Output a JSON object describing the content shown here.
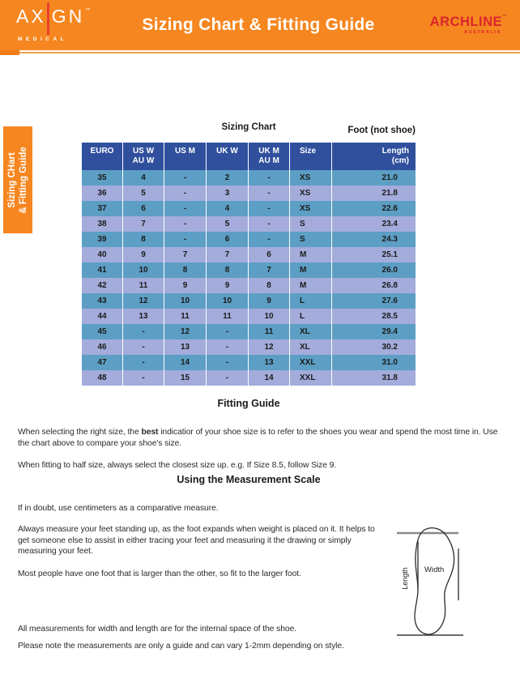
{
  "banner": {
    "axign_prefix": "AX",
    "axign_suffix": "GN",
    "axign_tm": "™",
    "axign_sub": "MEDICAL",
    "title": "Sizing Chart & Fitting Guide",
    "archline": "ARCHLINE",
    "archline_tm": "™",
    "archline_sub": "AUSTRALIA"
  },
  "side_tab": {
    "line1": "Sizing CHart",
    "line2": "& Fitting Guide"
  },
  "chart_data": {
    "type": "table",
    "title": "Sizing Chart",
    "note": "Foot (not shoe)",
    "columns": [
      [
        "EURO",
        ""
      ],
      [
        "US W",
        "AU W"
      ],
      [
        "US M",
        ""
      ],
      [
        "UK W",
        ""
      ],
      [
        "UK M",
        "AU M"
      ],
      [
        "Size",
        ""
      ],
      [
        "Length",
        "(cm)"
      ]
    ],
    "rows": [
      [
        "35",
        "4",
        "-",
        "2",
        "-",
        "XS",
        "21.0"
      ],
      [
        "36",
        "5",
        "-",
        "3",
        "-",
        "XS",
        "21.8"
      ],
      [
        "37",
        "6",
        "-",
        "4",
        "-",
        "XS",
        "22.6"
      ],
      [
        "38",
        "7",
        "-",
        "5",
        "-",
        "S",
        "23.4"
      ],
      [
        "39",
        "8",
        "-",
        "6",
        "-",
        "S",
        "24.3"
      ],
      [
        "40",
        "9",
        "7",
        "7",
        "6",
        "M",
        "25.1"
      ],
      [
        "41",
        "10",
        "8",
        "8",
        "7",
        "M",
        "26.0"
      ],
      [
        "42",
        "11",
        "9",
        "9",
        "8",
        "M",
        "26.8"
      ],
      [
        "43",
        "12",
        "10",
        "10",
        "9",
        "L",
        "27.6"
      ],
      [
        "44",
        "13",
        "11",
        "11",
        "10",
        "L",
        "28.5"
      ],
      [
        "45",
        "-",
        "12",
        "-",
        "11",
        "XL",
        "29.4"
      ],
      [
        "46",
        "-",
        "13",
        "-",
        "12",
        "XL",
        "30.2"
      ],
      [
        "47",
        "-",
        "14",
        "-",
        "13",
        "XXL",
        "31.0"
      ],
      [
        "48",
        "-",
        "15",
        "-",
        "14",
        "XXL",
        "31.8"
      ]
    ]
  },
  "fitting_guide": {
    "heading": "Fitting Guide",
    "p1_pre": "When selecting the right size, the ",
    "p1_bold": "best",
    "p1_post": " indicatior of your shoe size is to refer to the shoes you wear and spend the most time in. Use the chart above to compare your shoe's size.",
    "p2": "When fitting to half size, always select the closest size up. e.g. If Size 8.5, follow Size 9."
  },
  "measurement": {
    "heading": "Using the Measurement Scale",
    "p1": "If in doubt, use centimeters as a comparative measure.",
    "p2": "Always measure your feet standing up, as the foot expands when weight is placed on it. It helps to get someone else to assist in either tracing your feet and measuring it the drawing or simply measuring your feet.",
    "p3": "Most people have one foot that is larger than the other, so fit to the larger foot.",
    "p4": "All measurements for width and length are for the internal space of the shoe.",
    "p5": "Please note the measurements are only a guide and can vary 1-2mm depending on style."
  },
  "diagram": {
    "width_label": "Width",
    "length_label": "Length"
  },
  "colors": {
    "banner_orange": "#f6861f",
    "divider_orange": "#f2a14e",
    "header_blue": "#30509e",
    "row_teal": "#5c9ec4",
    "row_lavender": "#a3acdb",
    "logo_red": "#d9252b",
    "axign_stroke_red": "#e8402e"
  }
}
